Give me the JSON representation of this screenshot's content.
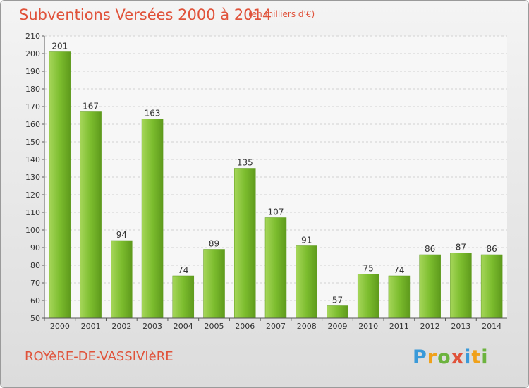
{
  "chart_data": {
    "type": "bar",
    "title": "Subventions Versées 2000 à 2014",
    "unit_label": "(en milliers d'€)",
    "categories": [
      "2000",
      "2001",
      "2002",
      "2003",
      "2004",
      "2005",
      "2006",
      "2007",
      "2008",
      "2009",
      "2010",
      "2011",
      "2012",
      "2013",
      "2014"
    ],
    "values": [
      201,
      167,
      94,
      163,
      74,
      89,
      135,
      107,
      91,
      57,
      75,
      74,
      86,
      87,
      86
    ],
    "ylim": [
      50,
      210
    ],
    "yticks": [
      50,
      60,
      70,
      80,
      90,
      100,
      110,
      120,
      130,
      140,
      150,
      160,
      170,
      180,
      190,
      200,
      210
    ],
    "grid": true,
    "bar_color": "#7cbd2e",
    "bar_color_light": "#a6d65a",
    "bar_color_dark": "#5e9a1c",
    "label_color": "#333333"
  },
  "footer": {
    "town": "ROYèRE-DE-VASSIVIèRE",
    "logo_letters": [
      "P",
      "r",
      "o",
      "x",
      "i",
      "t",
      "i"
    ]
  },
  "colors": {
    "accent": "#e0523a"
  }
}
